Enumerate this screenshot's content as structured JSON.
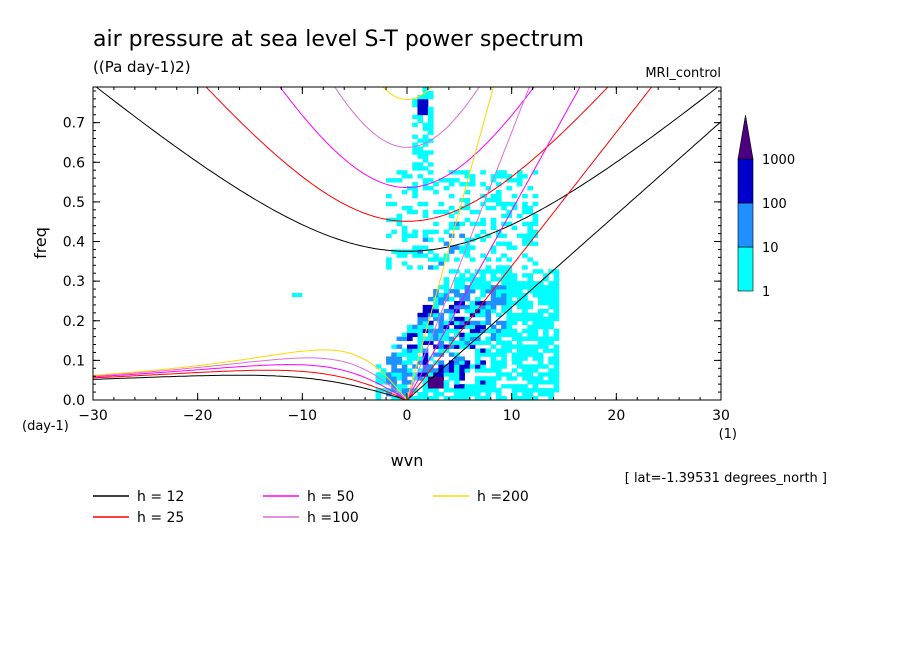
{
  "chart_data": {
    "type": "heatmap",
    "title": "air pressure at sea level S-T power spectrum",
    "subtitle": "((Pa day-1)2)",
    "run_label": "MRI_control",
    "xlabel": "wvn",
    "ylabel": "freq",
    "x_unit": "(1)",
    "y_unit": "(day-1)",
    "xlim": [
      -30,
      30
    ],
    "ylim": [
      0,
      0.79
    ],
    "x_ticks": [
      -30,
      -20,
      -10,
      0,
      10,
      20,
      30
    ],
    "x_tick_labels": [
      "−30",
      "−20",
      "−10",
      "0",
      "10",
      "20",
      "30"
    ],
    "y_ticks": [
      0.0,
      0.1,
      0.2,
      0.3,
      0.4,
      0.5,
      0.6,
      0.7
    ],
    "y_tick_labels": [
      "0.0",
      "0.1",
      "0.2",
      "0.3",
      "0.4",
      "0.5",
      "0.6",
      "0.7"
    ],
    "latitude_note": "[ lat=-1.39531 degrees_north ]",
    "colorbar": {
      "levels": [
        1,
        10,
        100,
        1000
      ],
      "level_labels": [
        "1",
        "10",
        "100",
        "1000"
      ],
      "colors": [
        "#00ffff",
        "#1e90ff",
        "#0000cd",
        "#4b0082"
      ]
    },
    "dispersion_curves": [
      {
        "name": "h = 12",
        "h": 12,
        "color": "#000000",
        "legend_label": "h = 12"
      },
      {
        "name": "h = 25",
        "h": 25,
        "color": "#ff0000",
        "legend_label": "h = 25"
      },
      {
        "name": "h = 50",
        "h": 50,
        "color": "#ff00ff",
        "legend_label": "h = 50"
      },
      {
        "name": "h =100",
        "h": 100,
        "color": "#da70d6",
        "legend_label": "h =100"
      },
      {
        "name": "h =200",
        "h": 200,
        "color": "#ffd700",
        "legend_label": "h =200"
      }
    ],
    "inertia_gravity_minimum_freq": [
      {
        "h": 12,
        "freq": 0.37,
        "at_wvn": -3
      },
      {
        "h": 25,
        "freq": 0.445,
        "at_wvn": -3
      },
      {
        "h": 50,
        "freq": 0.53,
        "at_wvn": -3
      },
      {
        "h": 100,
        "freq": 0.63,
        "at_wvn": -2
      },
      {
        "h": 200,
        "freq": 0.745,
        "at_wvn": -1
      }
    ],
    "kelvin_wave_slope_freq_per_wvn": [
      {
        "h": 12,
        "slope": 0.0229
      },
      {
        "h": 25,
        "slope": 0.0329
      },
      {
        "h": 50,
        "slope": 0.0466
      },
      {
        "h": 100,
        "slope": 0.066
      },
      {
        "h": 200,
        "slope": 0.1025
      }
    ],
    "rossby_peak_freq": [
      {
        "h": 12,
        "freq": 0.068,
        "at_wvn": -17
      },
      {
        "h": 25,
        "freq": 0.08,
        "at_wvn": -13
      },
      {
        "h": 50,
        "freq": 0.095,
        "at_wvn": -11
      },
      {
        "h": 100,
        "freq": 0.11,
        "at_wvn": -9
      },
      {
        "h": 200,
        "freq": 0.128,
        "at_wvn": -8
      }
    ],
    "power_regions": [
      {
        "level": 1,
        "wvn_range": [
          -3,
          14
        ],
        "freq_range": [
          0,
          0.33
        ]
      },
      {
        "level": 10,
        "wvn_range": [
          -3,
          10
        ],
        "freq_range": [
          0,
          0.3
        ]
      },
      {
        "level": 100,
        "wvn_range": [
          -1,
          7
        ],
        "freq_range": [
          0.02,
          0.26
        ]
      },
      {
        "level": 1000,
        "wvn_range": [
          2,
          3
        ],
        "freq_range": [
          0.03,
          0.06
        ]
      }
    ]
  }
}
